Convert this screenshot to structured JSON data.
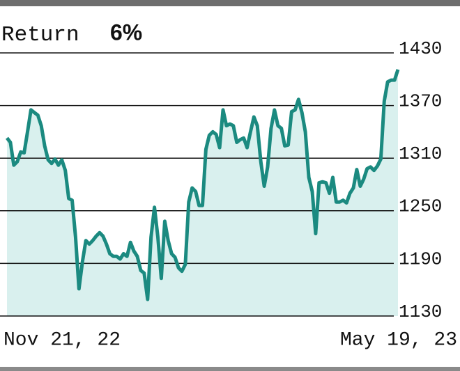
{
  "chart_data": {
    "type": "line",
    "title": "Return",
    "title_value": "6%",
    "categories": [
      "Nov 21, 22",
      null,
      null,
      null,
      null,
      null,
      null,
      null,
      null,
      null,
      null,
      null,
      null,
      null,
      null,
      null,
      null,
      null,
      null,
      null,
      null,
      null,
      null,
      null,
      null,
      null,
      null,
      null,
      null,
      null,
      null,
      null,
      null,
      null,
      null,
      null,
      null,
      null,
      null,
      null,
      null,
      null,
      null,
      null,
      null,
      null,
      null,
      null,
      null,
      null,
      null,
      null,
      null,
      null,
      null,
      null,
      null,
      null,
      null,
      null,
      null,
      null,
      null,
      null,
      null,
      null,
      null,
      null,
      null,
      null,
      null,
      null,
      null,
      null,
      null,
      null,
      null,
      null,
      null,
      null,
      null,
      null,
      null,
      null,
      null,
      null,
      null,
      null,
      null,
      null,
      null,
      null,
      null,
      null,
      null,
      null,
      null,
      null,
      null,
      null,
      null,
      null,
      null,
      null,
      null,
      null,
      null,
      null,
      null,
      null,
      null,
      null,
      null,
      null,
      "May 19, 23"
    ],
    "values": [
      1333,
      1328,
      1302,
      1306,
      1317,
      1316,
      1340,
      1365,
      1362,
      1359,
      1347,
      1324,
      1308,
      1304,
      1309,
      1302,
      1308,
      1296,
      1264,
      1262,
      1220,
      1161,
      1192,
      1216,
      1212,
      1216,
      1221,
      1225,
      1221,
      1212,
      1201,
      1198,
      1198,
      1195,
      1201,
      1198,
      1214,
      1204,
      1198,
      1182,
      1179,
      1149,
      1220,
      1254,
      1220,
      1173,
      1238,
      1216,
      1201,
      1197,
      1185,
      1181,
      1189,
      1260,
      1276,
      1272,
      1256,
      1256,
      1320,
      1336,
      1340,
      1337,
      1322,
      1365,
      1347,
      1349,
      1347,
      1328,
      1331,
      1333,
      1322,
      1340,
      1357,
      1347,
      1306,
      1278,
      1300,
      1344,
      1365,
      1347,
      1344,
      1324,
      1325,
      1363,
      1365,
      1377,
      1362,
      1340,
      1288,
      1272,
      1224,
      1282,
      1283,
      1282,
      1270,
      1288,
      1260,
      1260,
      1262,
      1259,
      1270,
      1276,
      1297,
      1278,
      1286,
      1298,
      1300,
      1296,
      1301,
      1309,
      1375,
      1397,
      1399,
      1399,
      1411
    ],
    "color": "#1b8a80",
    "fill": "#d9f0ee",
    "ylim": [
      1130,
      1430
    ],
    "yticks": [
      1130,
      1190,
      1250,
      1310,
      1370,
      1430
    ],
    "grid": true
  }
}
